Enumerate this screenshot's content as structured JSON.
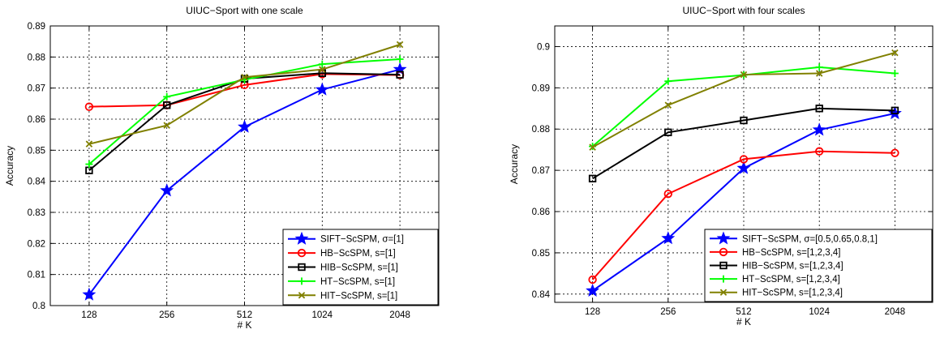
{
  "chart_data": [
    {
      "type": "line",
      "title": "UIUC−Sport with one scale",
      "xlabel": "# K",
      "ylabel": "Accuracy",
      "categories": [
        "128",
        "256",
        "512",
        "1024",
        "2048"
      ],
      "ylim": [
        0.8,
        0.89
      ],
      "yticks": [
        "0.8",
        "0.81",
        "0.82",
        "0.83",
        "0.84",
        "0.85",
        "0.86",
        "0.87",
        "0.88",
        "0.89"
      ],
      "grid": true,
      "legend_position": "bottom-right",
      "series": [
        {
          "name": "SIFT−ScSPM, σ=[1]",
          "color": "#0000ff",
          "marker": "star",
          "values": [
            0.8035,
            0.837,
            0.8575,
            0.8695,
            0.876
          ]
        },
        {
          "name": "HB−ScSPM, s=[1]",
          "color": "#ff0000",
          "marker": "circle",
          "values": [
            0.864,
            0.8645,
            0.871,
            0.8745,
            0.8742
          ]
        },
        {
          "name": "HIB−ScSPM, s=[1]",
          "color": "#000000",
          "marker": "square",
          "values": [
            0.8435,
            0.8645,
            0.873,
            0.8748,
            0.8743
          ]
        },
        {
          "name": "HT−ScSPM, s=[1]",
          "color": "#00ff00",
          "marker": "plus",
          "values": [
            0.8455,
            0.8672,
            0.8727,
            0.8777,
            0.8793
          ]
        },
        {
          "name": "HIT−ScSPM, s=[1]",
          "color": "#808000",
          "marker": "x",
          "values": [
            0.852,
            0.858,
            0.8735,
            0.876,
            0.884
          ]
        }
      ]
    },
    {
      "type": "line",
      "title": "UIUC−Sport with four scales",
      "xlabel": "# K",
      "ylabel": "Accuracy",
      "categories": [
        "128",
        "256",
        "512",
        "1024",
        "2048"
      ],
      "ylim": [
        0.838,
        0.905
      ],
      "yticks": [
        "0.84",
        "0.85",
        "0.86",
        "0.87",
        "0.88",
        "0.89",
        "0.9"
      ],
      "grid": true,
      "legend_position": "bottom-right",
      "series": [
        {
          "name": "SIFT−ScSPM, σ=[0.5,0.65,0.8,1]",
          "color": "#0000ff",
          "marker": "star",
          "values": [
            0.8408,
            0.8535,
            0.8705,
            0.8798,
            0.8838
          ]
        },
        {
          "name": "HB−ScSPM, s=[1,2,3,4]",
          "color": "#ff0000",
          "marker": "circle",
          "values": [
            0.8435,
            0.8643,
            0.8727,
            0.8746,
            0.8742
          ]
        },
        {
          "name": "HIB−ScSPM, s=[1,2,3,4]",
          "color": "#000000",
          "marker": "square",
          "values": [
            0.868,
            0.8792,
            0.8821,
            0.885,
            0.8845
          ]
        },
        {
          "name": "HT−ScSPM, s=[1,2,3,4]",
          "color": "#00ff00",
          "marker": "plus",
          "values": [
            0.8758,
            0.8916,
            0.8931,
            0.895,
            0.8935
          ]
        },
        {
          "name": "HIT−ScSPM, s=[1,2,3,4]",
          "color": "#808000",
          "marker": "x",
          "values": [
            0.8756,
            0.8858,
            0.8932,
            0.8935,
            0.8985
          ]
        }
      ]
    }
  ]
}
